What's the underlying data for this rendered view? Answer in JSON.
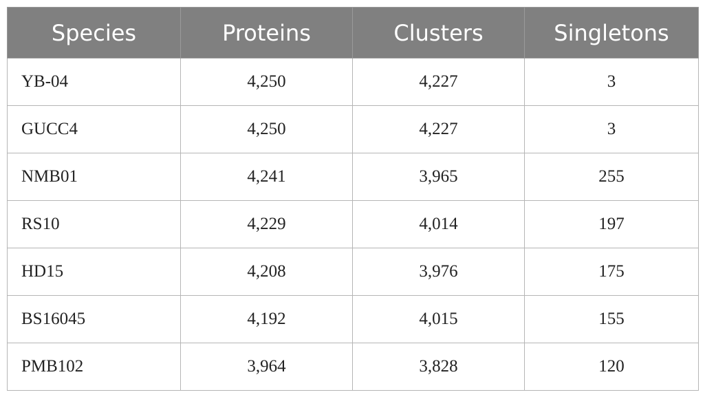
{
  "table": {
    "header": [
      "Species",
      "Proteins",
      "Clusters",
      "Singletons"
    ],
    "rows": [
      [
        "YB-04",
        "4,250",
        "4,227",
        "3"
      ],
      [
        "GUCC4",
        "4,250",
        "4,227",
        "3"
      ],
      [
        "NMB01",
        "4,241",
        "3,965",
        "255"
      ],
      [
        "RS10",
        "4,229",
        "4,014",
        "197"
      ],
      [
        "HD15",
        "4,208",
        "3,976",
        "175"
      ],
      [
        "BS16045",
        "4,192",
        "4,015",
        "155"
      ],
      [
        "PMB102",
        "3,964",
        "3,828",
        "120"
      ]
    ]
  }
}
